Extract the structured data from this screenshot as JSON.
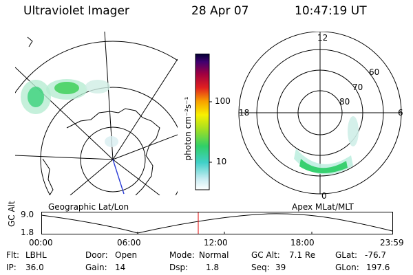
{
  "header": {
    "title": "Ultraviolet Imager",
    "date": "28 Apr 07",
    "time": "10:47:19 UT"
  },
  "colorbar": {
    "label": "photon cm⁻²s⁻¹",
    "ticks": [
      "100",
      "10"
    ],
    "scale": "log"
  },
  "left_map": {
    "label": "Geographic Lat/Lon"
  },
  "right_map": {
    "label": "Apex MLat/MLT",
    "mlt_labels": {
      "top": "12",
      "left": "18",
      "right": "6",
      "bottom": "0"
    },
    "lat_labels": [
      "60",
      "70",
      "80"
    ]
  },
  "altitude_plot": {
    "ylabel": "GC Alt",
    "ymax": "9.0",
    "ymin": "1.8",
    "xticks": [
      "00:00",
      "06:00",
      "12:00",
      "18:00",
      "23:59"
    ],
    "marker_color": "#e00000"
  },
  "footer": {
    "row1": [
      {
        "key": "Flt:",
        "value": "LBHL"
      },
      {
        "key": "Door:",
        "value": "Open"
      },
      {
        "key": "Mode:",
        "value": "Normal"
      },
      {
        "key": "GC Alt:",
        "value": "7.1 Re"
      },
      {
        "key": "GLat:",
        "value": "-76.7"
      }
    ],
    "row2": [
      {
        "key": "IP:",
        "value": "36.0"
      },
      {
        "key": "Gain:",
        "value": "14"
      },
      {
        "key": "Dsp:",
        "value": "1.8"
      },
      {
        "key": "Seq:",
        "value": "39"
      },
      {
        "key": "GLon:",
        "value": "197.6"
      }
    ]
  }
}
